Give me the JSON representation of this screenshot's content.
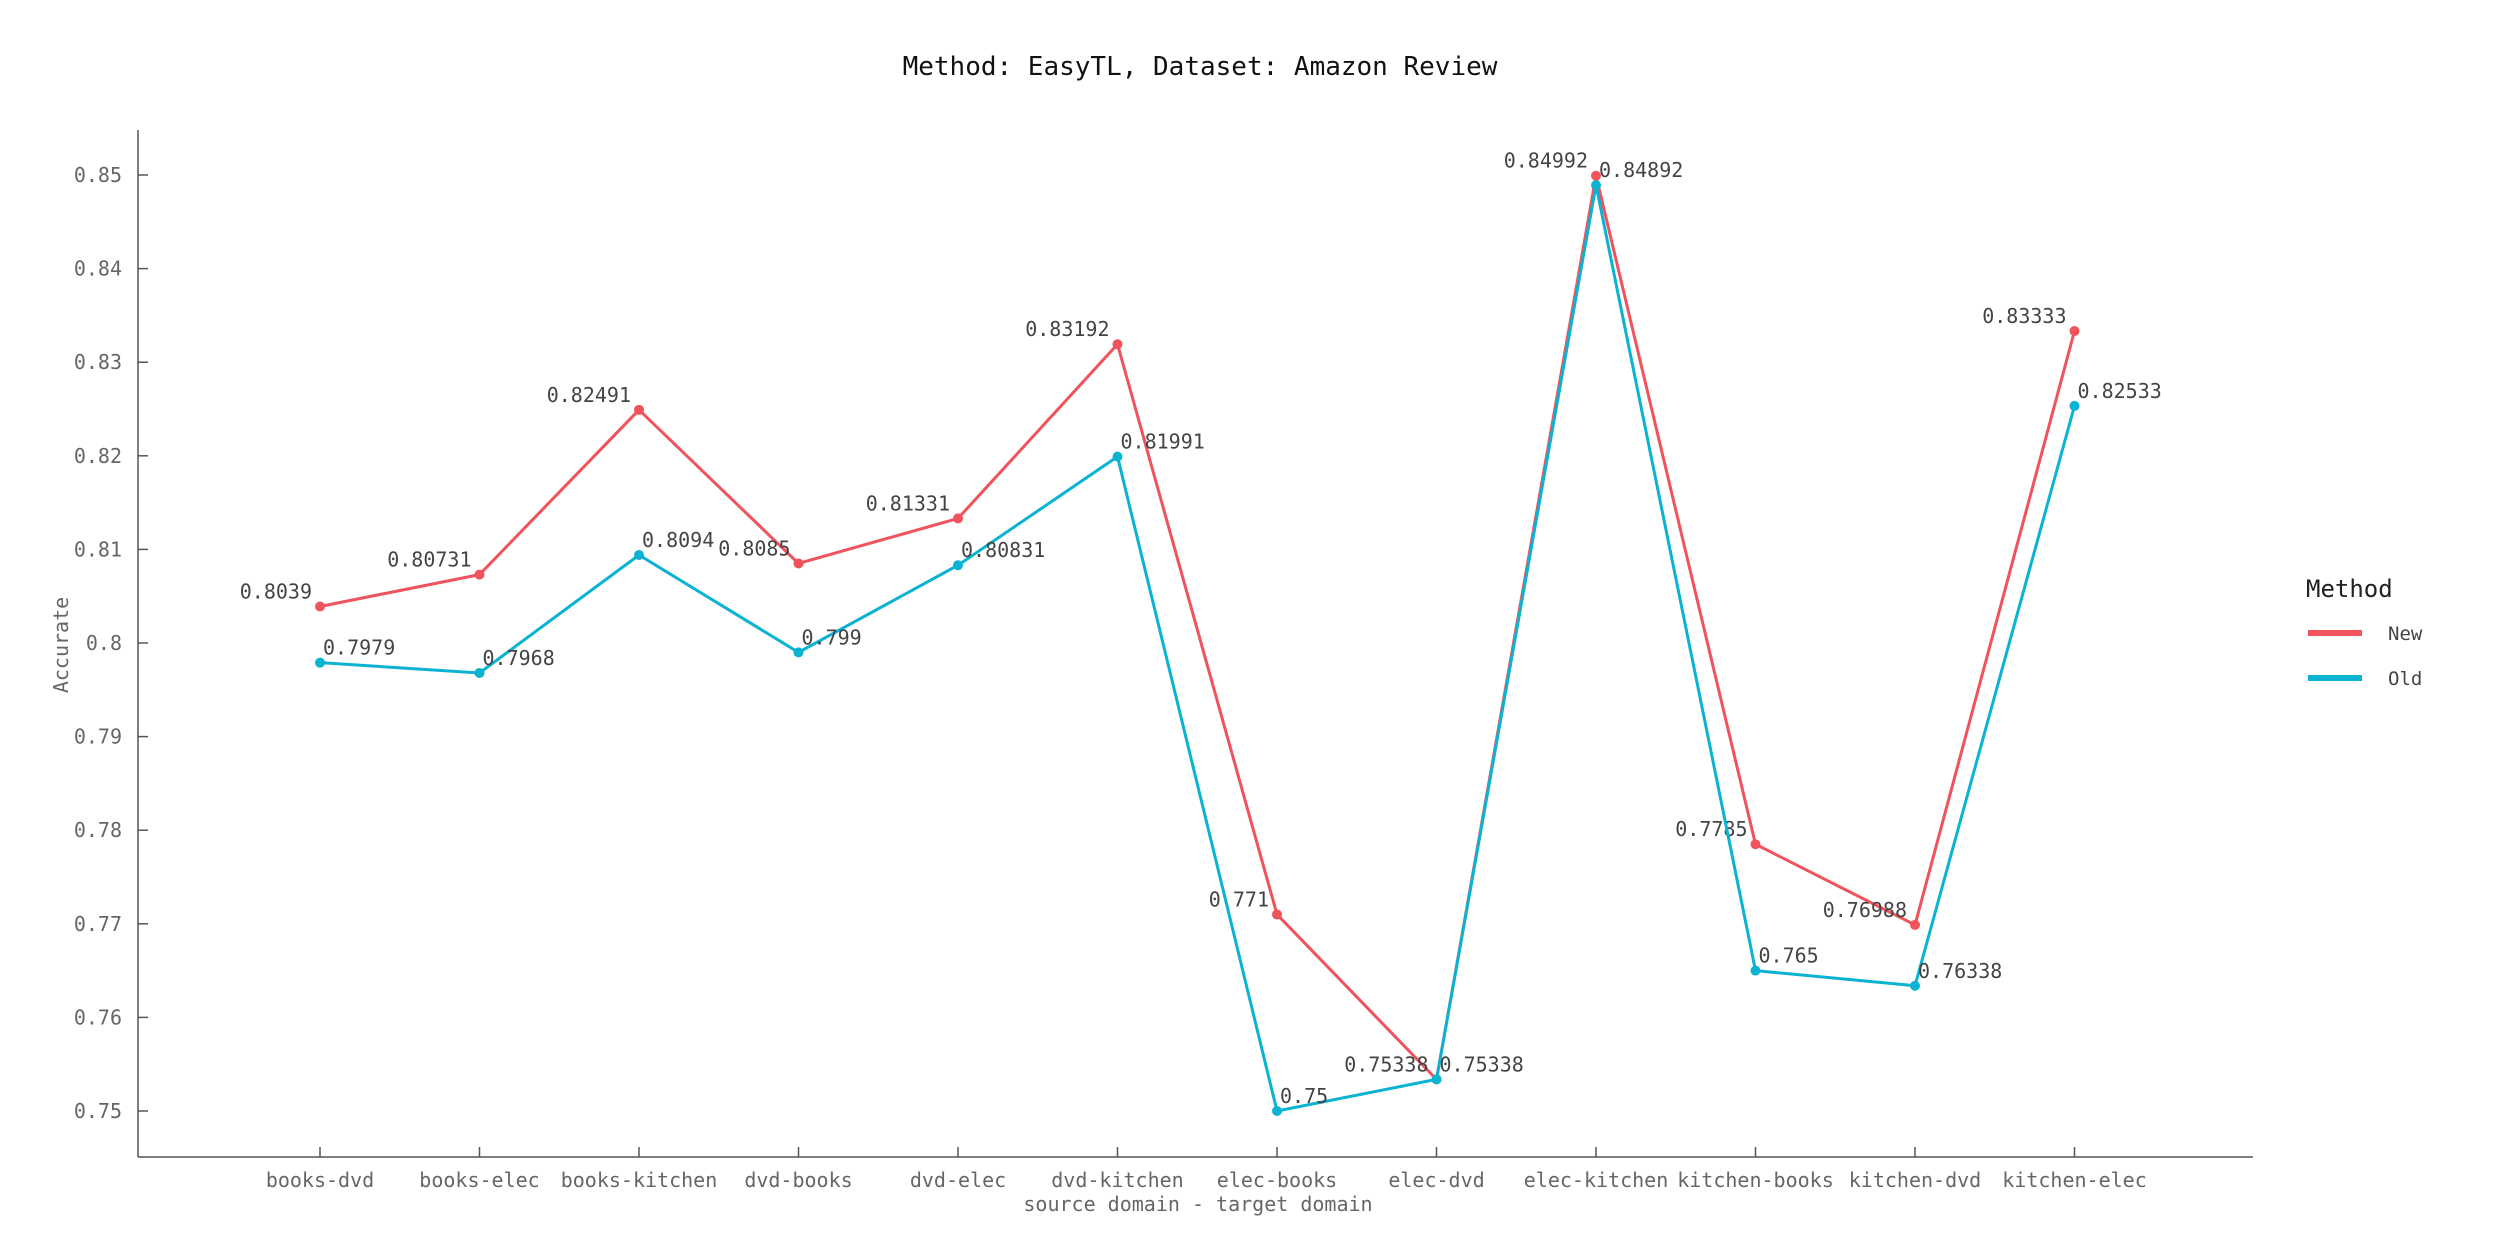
{
  "chart_data": {
    "type": "line",
    "title": "Method: EasyTL, Dataset: Amazon Review",
    "xlabel": "source domain - target domain",
    "ylabel": "Accurate",
    "categories": [
      "books-dvd",
      "books-elec",
      "books-kitchen",
      "dvd-books",
      "dvd-elec",
      "dvd-kitchen",
      "elec-books",
      "elec-dvd",
      "elec-kitchen",
      "kitchen-books",
      "kitchen-dvd",
      "kitchen-elec"
    ],
    "yticks": [
      "0.75",
      "0.76",
      "0.77",
      "0.78",
      "0.79",
      "0.8",
      "0.81",
      "0.82",
      "0.83",
      "0.84",
      "0.85"
    ],
    "ylim": [
      0.7452,
      0.8552
    ],
    "grid": false,
    "legend": {
      "title": "Method",
      "position": "right"
    },
    "series": [
      {
        "name": "New",
        "color": "#f0535c",
        "values": [
          0.8039,
          0.80731,
          0.82491,
          0.8085,
          0.81331,
          0.83192,
          0.771,
          0.75338,
          0.84992,
          0.7785,
          0.76988,
          0.83333
        ],
        "labels": [
          "0.8039",
          "0.80731",
          "0.82491",
          "0.8085",
          "0.81331",
          "0.83192",
          "0.771",
          "0.75338",
          "0.84992",
          "0.7785",
          "0.76988",
          "0.83333"
        ]
      },
      {
        "name": "Old",
        "color": "#0ab3d1",
        "values": [
          0.7979,
          0.7968,
          0.8094,
          0.799,
          0.80831,
          0.81991,
          0.75,
          0.75338,
          0.84892,
          0.765,
          0.76338,
          0.82533
        ],
        "labels": [
          "0.7979",
          "0.7968",
          "0.8094",
          "0.799",
          "0.80831",
          "0.81991",
          "0.75",
          "0.75338",
          "0.84892",
          "0.765",
          "0.76338",
          "0.82533"
        ]
      }
    ]
  }
}
